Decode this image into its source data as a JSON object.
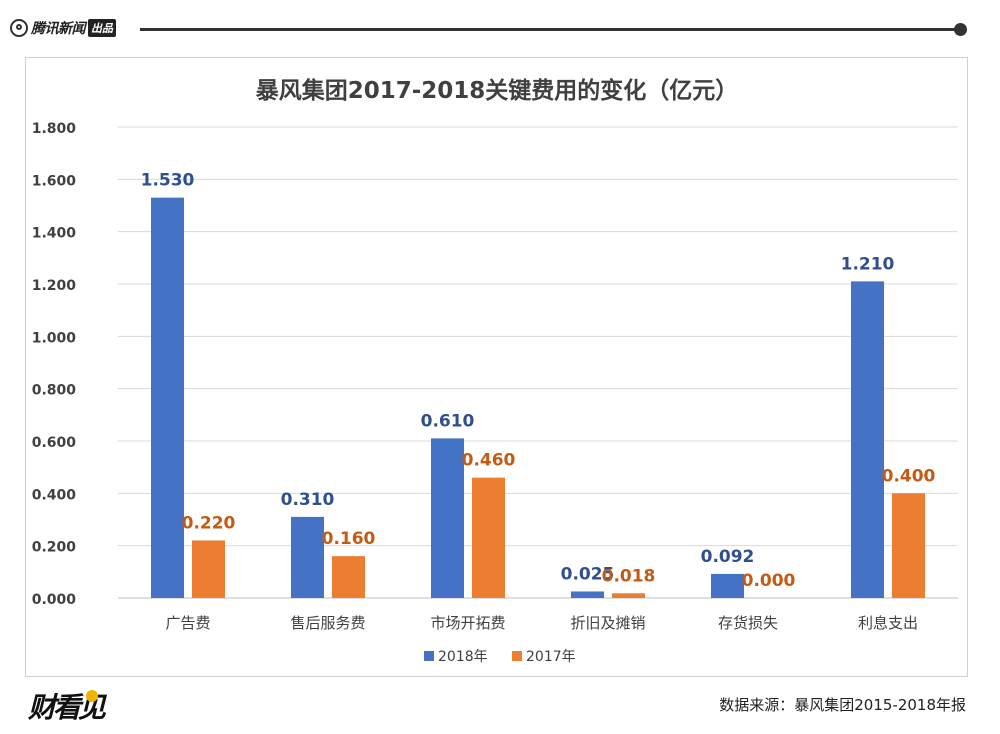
{
  "header": {
    "brand_name": "腾讯新闻",
    "brand_badge": "出品"
  },
  "chart_data": {
    "type": "bar",
    "title": "暴风集团2017-2018关键费用的变化（亿元）",
    "categories": [
      "广告费",
      "售后服务费",
      "市场开拓费",
      "折旧及摊销",
      "存货损失",
      "利息支出"
    ],
    "series": [
      {
        "name": "2018年",
        "color": "#4472c4",
        "values": [
          1.53,
          0.31,
          0.61,
          0.025,
          0.092,
          1.21
        ],
        "labels": [
          "1.530",
          "0.310",
          "0.610",
          "0.025",
          "0.092",
          "1.210"
        ],
        "label_color": "#2f4f8f"
      },
      {
        "name": "2017年",
        "color": "#ed7d31",
        "values": [
          0.22,
          0.16,
          0.46,
          0.018,
          0.0,
          0.4
        ],
        "labels": [
          "0.220",
          "0.160",
          "0.460",
          "0.018",
          "0.000",
          "0.400"
        ],
        "label_color": "#c55a11"
      }
    ],
    "ylim": [
      0,
      1.8
    ],
    "yticks": [
      "0.000",
      "0.200",
      "0.400",
      "0.600",
      "0.800",
      "1.000",
      "1.200",
      "1.400",
      "1.600",
      "1.800"
    ],
    "grid": true,
    "legend_position": "bottom"
  },
  "footer": {
    "logo_text": "财看见",
    "source": "数据来源：暴风集团2015-2018年报"
  }
}
